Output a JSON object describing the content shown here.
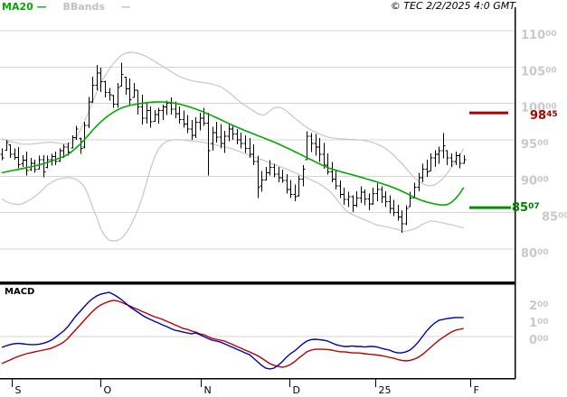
{
  "legend": {
    "ma20_label": "MA20",
    "ma20_dash": "—",
    "bbands_label": "BBands",
    "bbands_dash": "—"
  },
  "header": {
    "copyright": "© TEC 2/2/2025 4:0 GMT"
  },
  "colors": {
    "ma20": "#00aa00",
    "bbands": "#c6c6c6",
    "bars": "#000000",
    "macd_line": "#0000b4",
    "macd_signal": "#b40000",
    "resistance": "#aa0000",
    "support": "#009000",
    "grid": "#d6d6d6",
    "axis_text": "#c9c9c9",
    "frame": "#000000"
  },
  "chart_data": {
    "type": "ohlc",
    "title": "",
    "x_axis": {
      "ticks": [
        {
          "label": "S",
          "index": 2.4
        },
        {
          "label": "O",
          "index": 24
        },
        {
          "label": "N",
          "index": 48.2
        },
        {
          "label": "D",
          "index": 69.7
        },
        {
          "label": "25",
          "index": 90.6
        },
        {
          "label": "F",
          "index": 113.6
        }
      ]
    },
    "price_panel": {
      "ylim": [
        7600,
        11050
      ],
      "y_axis": {
        "ticks": [
          {
            "main": "110",
            "sup": "00",
            "value": 11000
          },
          {
            "main": "105",
            "sup": "00",
            "value": 10500
          },
          {
            "main": "100",
            "sup": "00",
            "value": 10000
          },
          {
            "main": "95",
            "sup": "00",
            "value": 9500
          },
          {
            "main": "90",
            "sup": "00",
            "value": 9000
          },
          {
            "main": "85",
            "sup": "00",
            "value": 8500,
            "x": 599
          },
          {
            "main": "80",
            "sup": "00",
            "value": 8000
          }
        ]
      },
      "levels": {
        "resistance": {
          "value": 9845,
          "main": "98",
          "sup": "45"
        },
        "support": {
          "value": 8507,
          "main": "85",
          "sup": "07"
        }
      },
      "bars_ohlc": [
        [
          9300,
          9380,
          9220,
          9250
        ],
        [
          9360,
          9500,
          9350,
          9460
        ],
        [
          9430,
          9440,
          9255,
          9300
        ],
        [
          9300,
          9380,
          9230,
          9260
        ],
        [
          9260,
          9400,
          9110,
          9160
        ],
        [
          9170,
          9290,
          9130,
          9220
        ],
        [
          9220,
          9340,
          9010,
          9080
        ],
        [
          9090,
          9255,
          9070,
          9180
        ],
        [
          9180,
          9230,
          9045,
          9090
        ],
        [
          9100,
          9280,
          9095,
          9230
        ],
        [
          9230,
          9290,
          8985,
          9060
        ],
        [
          9120,
          9280,
          9110,
          9230
        ],
        [
          9230,
          9305,
          9145,
          9270
        ],
        [
          9270,
          9340,
          9155,
          9200
        ],
        [
          9210,
          9380,
          9195,
          9350
        ],
        [
          9350,
          9440,
          9255,
          9400
        ],
        [
          9400,
          9465,
          9280,
          9330
        ],
        [
          9390,
          9565,
          9380,
          9530
        ],
        [
          9530,
          9690,
          9500,
          9650
        ],
        [
          9520,
          9530,
          9305,
          9380
        ],
        [
          9400,
          9750,
          9380,
          9700
        ],
        [
          9700,
          10090,
          9660,
          10020
        ],
        [
          10020,
          10370,
          10010,
          10250
        ],
        [
          10250,
          10530,
          10180,
          10420
        ],
        [
          10420,
          10490,
          10160,
          10300
        ],
        [
          10300,
          10310,
          10080,
          10150
        ],
        [
          10150,
          10210,
          10040,
          10120
        ],
        [
          10110,
          10120,
          9940,
          9990
        ],
        [
          9990,
          10280,
          9940,
          10220
        ],
        [
          10240,
          10560,
          10240,
          10400
        ],
        [
          10360,
          10370,
          10120,
          10200
        ],
        [
          10200,
          10345,
          9975,
          10050
        ],
        [
          10080,
          10280,
          10080,
          10180
        ],
        [
          10180,
          10180,
          9850,
          9950
        ],
        [
          9950,
          10120,
          9710,
          9800
        ],
        [
          9800,
          10020,
          9725,
          9900
        ],
        [
          9900,
          9960,
          9665,
          9750
        ],
        [
          9755,
          9910,
          9750,
          9850
        ],
        [
          9850,
          9940,
          9725,
          9900
        ],
        [
          9900,
          9985,
          9775,
          9950
        ],
        [
          9950,
          10040,
          9840,
          10000
        ],
        [
          10000,
          10080,
          9850,
          9920
        ],
        [
          9920,
          10025,
          9800,
          9860
        ],
        [
          9860,
          9960,
          9725,
          9780
        ],
        [
          9780,
          9900,
          9665,
          9720
        ],
        [
          9720,
          9840,
          9590,
          9650
        ],
        [
          9650,
          9775,
          9500,
          9560
        ],
        [
          9560,
          9810,
          9525,
          9740
        ],
        [
          9740,
          9870,
          9630,
          9800
        ],
        [
          9800,
          9940,
          9690,
          9730
        ],
        [
          9730,
          9870,
          9010,
          9350
        ],
        [
          9450,
          9680,
          9350,
          9600
        ],
        [
          9600,
          9750,
          9465,
          9540
        ],
        [
          9540,
          9715,
          9380,
          9450
        ],
        [
          9450,
          9625,
          9320,
          9550
        ],
        [
          9550,
          9725,
          9480,
          9650
        ],
        [
          9650,
          9690,
          9500,
          9580
        ],
        [
          9580,
          9650,
          9440,
          9500
        ],
        [
          9500,
          9600,
          9380,
          9450
        ],
        [
          9450,
          9565,
          9320,
          9380
        ],
        [
          9380,
          9525,
          9255,
          9300
        ],
        [
          9300,
          9440,
          9150,
          9200
        ],
        [
          9200,
          9280,
          8700,
          8850
        ],
        [
          8870,
          9070,
          8785,
          8950
        ],
        [
          8950,
          9130,
          8945,
          9050
        ],
        [
          9050,
          9220,
          9010,
          9120
        ],
        [
          9120,
          9170,
          8985,
          9030
        ],
        [
          9030,
          9130,
          8920,
          8980
        ],
        [
          8980,
          9090,
          8910,
          8940
        ],
        [
          8940,
          9030,
          8760,
          8820
        ],
        [
          8820,
          8950,
          8700,
          8750
        ],
        [
          8750,
          8885,
          8660,
          8720
        ],
        [
          8730,
          9010,
          8720,
          8960
        ],
        [
          8960,
          9155,
          8860,
          9100
        ],
        [
          9230,
          9620,
          9230,
          9550
        ],
        [
          9550,
          9595,
          9330,
          9450
        ],
        [
          9450,
          9580,
          9280,
          9400
        ],
        [
          9400,
          9525,
          9195,
          9300
        ],
        [
          9300,
          9455,
          9105,
          9150
        ],
        [
          9150,
          9315,
          9020,
          9060
        ],
        [
          9060,
          9195,
          8920,
          8960
        ],
        [
          8960,
          9070,
          8820,
          8870
        ],
        [
          8870,
          8945,
          8700,
          8750
        ],
        [
          8750,
          8845,
          8610,
          8680
        ],
        [
          8680,
          8785,
          8575,
          8720
        ],
        [
          8720,
          8735,
          8510,
          8600
        ],
        [
          8600,
          8795,
          8575,
          8700
        ],
        [
          8700,
          8860,
          8635,
          8780
        ],
        [
          8780,
          8820,
          8600,
          8690
        ],
        [
          8690,
          8760,
          8535,
          8620
        ],
        [
          8620,
          8845,
          8610,
          8760
        ],
        [
          8760,
          8905,
          8660,
          8820
        ],
        [
          8820,
          8860,
          8635,
          8720
        ],
        [
          8720,
          8795,
          8575,
          8650
        ],
        [
          8650,
          8735,
          8490,
          8560
        ],
        [
          8560,
          8675,
          8450,
          8500
        ],
        [
          8500,
          8610,
          8390,
          8440
        ],
        [
          8440,
          8535,
          8225,
          8350
        ],
        [
          8350,
          8600,
          8330,
          8560
        ],
        [
          8580,
          8785,
          8575,
          8700
        ],
        [
          8700,
          8910,
          8700,
          8850
        ],
        [
          8850,
          9045,
          8795,
          8980
        ],
        [
          8980,
          9170,
          8920,
          9100
        ],
        [
          9100,
          9230,
          8990,
          9060
        ],
        [
          9075,
          9315,
          9070,
          9250
        ],
        [
          9250,
          9355,
          9130,
          9300
        ],
        [
          9300,
          9405,
          9170,
          9350
        ],
        [
          9350,
          9595,
          9245,
          9420
        ],
        [
          9350,
          9355,
          9155,
          9250
        ],
        [
          9250,
          9315,
          9130,
          9200
        ],
        [
          9200,
          9340,
          9155,
          9280
        ],
        [
          9280,
          9315,
          9110,
          9180
        ],
        [
          9180,
          9290,
          9170,
          9230
        ]
      ],
      "ma20": [
        9048,
        9060,
        9072,
        9083,
        9094,
        9106,
        9118,
        9129,
        9140,
        9155,
        9172,
        9190,
        9207,
        9228,
        9248,
        9271,
        9300,
        9340,
        9388,
        9440,
        9500,
        9565,
        9630,
        9690,
        9745,
        9795,
        9840,
        9878,
        9910,
        9938,
        9957,
        9972,
        9983,
        9993,
        10003,
        10010,
        10016,
        10020,
        10022,
        10021,
        10017,
        10011,
        10003,
        9991,
        9977,
        9961,
        9943,
        9924,
        9903,
        9880,
        9856,
        9831,
        9805,
        9779,
        9752,
        9726,
        9700,
        9675,
        9651,
        9628,
        9605,
        9583,
        9560,
        9538,
        9515,
        9492,
        9469,
        9445,
        9420,
        9394,
        9367,
        9339,
        9311,
        9283,
        9255,
        9227,
        9199,
        9171,
        9144,
        9120,
        9100,
        9082,
        9066,
        9050,
        9035,
        9020,
        9004,
        8988,
        8972,
        8955,
        8938,
        8921,
        8903,
        8884,
        8864,
        8843,
        8820,
        8795,
        8768,
        8740,
        8712,
        8686,
        8664,
        8647,
        8632,
        8620,
        8610,
        8604,
        8610,
        8640,
        8690,
        8760,
        8845
      ],
      "bb_upper": [
        9515,
        9498,
        9482,
        9465,
        9453,
        9440,
        9440,
        9440,
        9446,
        9453,
        9460,
        9465,
        9468,
        9462,
        9453,
        9446,
        9440,
        9465,
        9527,
        9632,
        9744,
        9880,
        10020,
        10150,
        10270,
        10380,
        10470,
        10545,
        10610,
        10660,
        10690,
        10703,
        10700,
        10690,
        10670,
        10645,
        10615,
        10580,
        10545,
        10510,
        10475,
        10440,
        10405,
        10375,
        10350,
        10330,
        10315,
        10303,
        10294,
        10286,
        10277,
        10267,
        10251,
        10232,
        10195,
        10158,
        10108,
        10059,
        10010,
        9973,
        9935,
        9898,
        9862,
        9837,
        9849,
        9899,
        9942,
        9948,
        9936,
        9899,
        9849,
        9800,
        9756,
        9707,
        9670,
        9633,
        9608,
        9583,
        9559,
        9539,
        9527,
        9521,
        9515,
        9512,
        9508,
        9505,
        9502,
        9496,
        9490,
        9478,
        9465,
        9440,
        9416,
        9384,
        9341,
        9292,
        9230,
        9181,
        9107,
        9045,
        8983,
        8933,
        8896,
        8877,
        8871,
        8884,
        8921,
        8970,
        9039,
        9119,
        9206,
        9292,
        9379
      ],
      "bb_lower": [
        8691,
        8652,
        8631,
        8618,
        8611,
        8624,
        8649,
        8680,
        8722,
        8766,
        8822,
        8877,
        8914,
        8945,
        8964,
        8976,
        8982,
        8976,
        8957,
        8921,
        8859,
        8735,
        8574,
        8438,
        8277,
        8178,
        8122,
        8110,
        8116,
        8147,
        8208,
        8295,
        8413,
        8543,
        8698,
        8890,
        9094,
        9255,
        9379,
        9440,
        9478,
        9496,
        9502,
        9502,
        9496,
        9490,
        9484,
        9478,
        9471,
        9465,
        9453,
        9440,
        9428,
        9416,
        9404,
        9391,
        9373,
        9354,
        9330,
        9311,
        9286,
        9267,
        9243,
        9230,
        9206,
        9187,
        9162,
        9144,
        9119,
        9100,
        9076,
        9051,
        9026,
        9001,
        8976,
        8951,
        8921,
        8896,
        8859,
        8822,
        8766,
        8698,
        8630,
        8555,
        8506,
        8475,
        8450,
        8425,
        8401,
        8377,
        8352,
        8330,
        8320,
        8308,
        8295,
        8283,
        8273,
        8240,
        8245,
        8258,
        8277,
        8302,
        8339,
        8363,
        8388,
        8382,
        8370,
        8357,
        8345,
        8333,
        8320,
        8302,
        8289
      ]
    },
    "macd_panel": {
      "label": "MACD",
      "y_axis": {
        "ticks": [
          {
            "main": "2",
            "sup": "00",
            "value": 200
          },
          {
            "main": "1",
            "sup": "00",
            "value": 100
          },
          {
            "main": "0",
            "sup": "00",
            "value": 0
          }
        ]
      },
      "macd": [
        -63,
        -55,
        -47,
        -42,
        -40,
        -42,
        -45,
        -47,
        -47,
        -45,
        -40,
        -32,
        -21,
        -5,
        14,
        32,
        58,
        89,
        121,
        147,
        174,
        200,
        221,
        237,
        247,
        253,
        258,
        247,
        232,
        216,
        195,
        174,
        158,
        142,
        126,
        111,
        100,
        89,
        79,
        68,
        58,
        47,
        37,
        32,
        26,
        21,
        16,
        21,
        11,
        0,
        -11,
        -21,
        -26,
        -32,
        -42,
        -53,
        -63,
        -74,
        -84,
        -95,
        -105,
        -126,
        -147,
        -168,
        -184,
        -189,
        -184,
        -168,
        -147,
        -121,
        -100,
        -84,
        -63,
        -42,
        -26,
        -18,
        -16,
        -18,
        -21,
        -26,
        -37,
        -47,
        -53,
        -58,
        -58,
        -55,
        -58,
        -58,
        -61,
        -58,
        -58,
        -61,
        -68,
        -74,
        -79,
        -89,
        -95,
        -95,
        -89,
        -79,
        -58,
        -32,
        0,
        32,
        58,
        79,
        95,
        100,
        105,
        108,
        111,
        111,
        111
      ],
      "signal": [
        -158,
        -147,
        -137,
        -126,
        -116,
        -108,
        -100,
        -95,
        -89,
        -84,
        -79,
        -74,
        -68,
        -58,
        -47,
        -32,
        -11,
        16,
        42,
        68,
        95,
        121,
        147,
        168,
        184,
        195,
        205,
        211,
        208,
        200,
        189,
        179,
        168,
        158,
        147,
        137,
        126,
        116,
        108,
        100,
        89,
        79,
        68,
        58,
        47,
        42,
        32,
        26,
        16,
        11,
        0,
        -11,
        -16,
        -21,
        -26,
        -37,
        -47,
        -58,
        -68,
        -79,
        -89,
        -100,
        -111,
        -126,
        -142,
        -158,
        -168,
        -174,
        -179,
        -174,
        -163,
        -147,
        -126,
        -108,
        -89,
        -79,
        -74,
        -74,
        -74,
        -76,
        -79,
        -84,
        -89,
        -89,
        -92,
        -95,
        -95,
        -97,
        -100,
        -103,
        -105,
        -108,
        -111,
        -116,
        -121,
        -126,
        -134,
        -139,
        -142,
        -139,
        -132,
        -121,
        -105,
        -84,
        -63,
        -42,
        -21,
        -5,
        11,
        26,
        37,
        42,
        47
      ]
    }
  }
}
